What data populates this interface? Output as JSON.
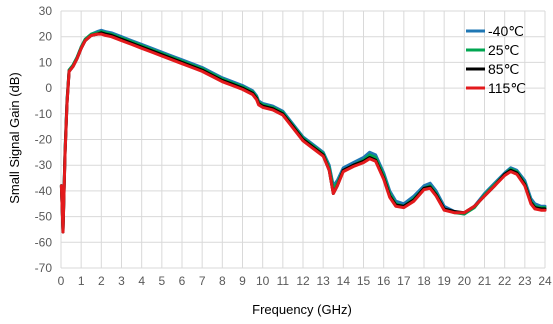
{
  "chart_data": {
    "type": "line",
    "title": "",
    "xlabel": "Frequency (GHz)",
    "ylabel": "Small Signal Gain (dB)",
    "xlim": [
      0,
      24
    ],
    "ylim": [
      -70,
      30
    ],
    "x_ticks": [
      "0",
      "1",
      "2",
      "3",
      "4",
      "5",
      "6",
      "7",
      "8",
      "9",
      "10",
      "11",
      "12",
      "13",
      "14",
      "15",
      "16",
      "17",
      "18",
      "19",
      "20",
      "21",
      "22",
      "23",
      "24"
    ],
    "y_ticks": [
      "30",
      "20",
      "10",
      "0",
      "-10",
      "-20",
      "-30",
      "-40",
      "-50",
      "-60",
      "-70"
    ],
    "grid": true,
    "legend_position": "top-right",
    "x": [
      0.02,
      0.1,
      0.2,
      0.3,
      0.4,
      0.6,
      0.8,
      1.0,
      1.2,
      1.5,
      1.8,
      2.0,
      2.2,
      2.5,
      3.0,
      3.5,
      4.0,
      4.5,
      5.0,
      5.5,
      6.0,
      6.5,
      7.0,
      7.5,
      8.0,
      8.5,
      9.0,
      9.5,
      9.7,
      9.8,
      10.0,
      10.5,
      11.0,
      11.5,
      12.0,
      12.5,
      13.0,
      13.3,
      13.5,
      13.7,
      14.0,
      14.5,
      15.0,
      15.3,
      15.6,
      16.0,
      16.3,
      16.6,
      17.0,
      17.5,
      18.0,
      18.3,
      18.6,
      19.0,
      19.5,
      20.0,
      20.5,
      21.0,
      21.5,
      22.0,
      22.3,
      22.6,
      23.0,
      23.3,
      23.5,
      23.8,
      24.0
    ],
    "series": [
      {
        "name": "-40℃",
        "color": "#1f77b4",
        "values": [
          -38,
          -55,
          -25,
          -5,
          7,
          9,
          12,
          16,
          19,
          21,
          22,
          22.5,
          22,
          21.5,
          20,
          18.5,
          17,
          15.5,
          14,
          12.5,
          11,
          9.5,
          8,
          6,
          4,
          2.5,
          1,
          -1,
          -3,
          -5,
          -6,
          -7,
          -9,
          -14,
          -19,
          -22,
          -25,
          -30,
          -38,
          -36,
          -31,
          -29,
          -27,
          -25,
          -26,
          -33,
          -40,
          -44,
          -45,
          -42,
          -38,
          -37,
          -40,
          -46,
          -48,
          -49,
          -46,
          -41,
          -37,
          -33,
          -31,
          -32,
          -36,
          -43,
          -45,
          -46,
          -46
        ]
      },
      {
        "name": "25℃",
        "color": "#00a651",
        "values": [
          -38,
          -55,
          -25,
          -5,
          7,
          9,
          12,
          16,
          19,
          21,
          21.5,
          22,
          21.5,
          21,
          19.5,
          18,
          16.5,
          15,
          13.5,
          12,
          10.5,
          9,
          7.5,
          5.5,
          3.5,
          2,
          0.5,
          -1.5,
          -3.5,
          -5.5,
          -6.5,
          -7.5,
          -9.5,
          -14.5,
          -19.5,
          -22.5,
          -25.5,
          -31,
          -39,
          -37,
          -32,
          -30,
          -28,
          -26,
          -27,
          -34,
          -41,
          -45,
          -46,
          -43,
          -39,
          -38,
          -41,
          -47,
          -48.5,
          -49,
          -46.5,
          -41.5,
          -37.5,
          -33.5,
          -31.5,
          -32.5,
          -37,
          -44,
          -46,
          -46.5,
          -46.5
        ]
      },
      {
        "name": "85℃",
        "color": "#000000",
        "values": [
          -38,
          -56,
          -26,
          -6,
          6.5,
          8.5,
          11.5,
          15.5,
          18.5,
          20.5,
          21,
          21.5,
          21,
          20.5,
          19,
          17.5,
          16,
          14.5,
          13,
          11.5,
          10,
          8.5,
          7,
          5,
          3,
          1.5,
          0,
          -2,
          -4,
          -6,
          -7,
          -8,
          -10,
          -15,
          -20,
          -23,
          -26,
          -32,
          -41,
          -38,
          -32,
          -30,
          -28.5,
          -27,
          -28,
          -35,
          -42,
          -45.5,
          -46,
          -43.5,
          -39,
          -38.5,
          -41.5,
          -47,
          -48,
          -48.5,
          -46,
          -42,
          -38,
          -33.5,
          -32,
          -33,
          -37.5,
          -44.5,
          -46.5,
          -47,
          -47
        ]
      },
      {
        "name": "115℃",
        "color": "#e31a1c",
        "values": [
          -38,
          -56,
          -26,
          -6,
          6.5,
          8.5,
          11.5,
          15.5,
          18.5,
          20.5,
          21,
          21,
          20.5,
          20,
          18.5,
          17,
          15.5,
          14,
          12.5,
          11,
          9.5,
          8,
          6.5,
          4.5,
          2.5,
          1,
          -0.5,
          -2.5,
          -4.5,
          -6.5,
          -7.5,
          -8.5,
          -10.5,
          -15.5,
          -20.5,
          -23.5,
          -26.5,
          -32,
          -41,
          -38,
          -32.5,
          -30.5,
          -29,
          -27.5,
          -28.5,
          -35.5,
          -42.5,
          -46,
          -46.5,
          -44,
          -39.5,
          -39,
          -42,
          -47.5,
          -48.5,
          -48.5,
          -46,
          -42,
          -38,
          -34,
          -32.5,
          -33.5,
          -38,
          -45,
          -47,
          -47.5,
          -47.5
        ]
      }
    ]
  }
}
